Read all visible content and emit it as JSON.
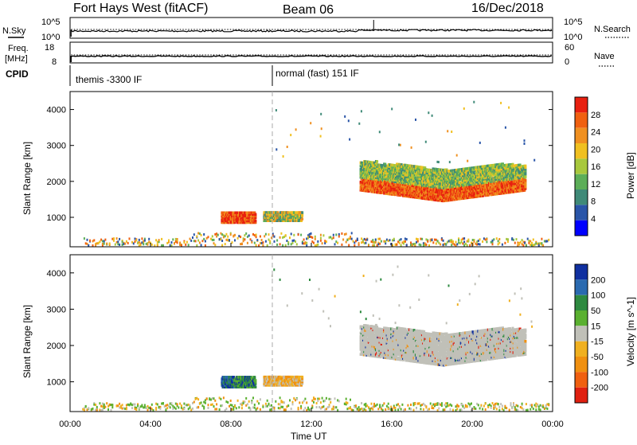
{
  "header": {
    "station": "Fort Hays West (fitACF)",
    "beam": "Beam 06",
    "date": "16/Dec/2018"
  },
  "nsky_panel": {
    "left_label": "N.Sky",
    "right_label": "N.Search",
    "left_ticks": [
      "10^5",
      "10^0"
    ],
    "right_ticks": [
      "10^5",
      "10^0"
    ]
  },
  "freq_panel": {
    "left_label_1": "Freq.",
    "left_label_2": "[MHz]",
    "right_label": "Nave",
    "left_ticks": [
      "18",
      "8"
    ],
    "right_ticks": [
      "60",
      "0"
    ]
  },
  "cpid_panel": {
    "label": "CPID",
    "segments": [
      {
        "text": "themis -3300 IF",
        "start_hour": 0.0
      },
      {
        "text": "normal (fast) 151 IF",
        "start_hour": 10.0
      }
    ]
  },
  "colors": {
    "power_scale": [
      "#0000ff",
      "#2a55a8",
      "#3f8a78",
      "#5cae58",
      "#a8c83c",
      "#f0c020",
      "#f09020",
      "#f06010",
      "#e82010"
    ],
    "velocity_scale": [
      "#1030a0",
      "#2a6ab0",
      "#2e8a40",
      "#5ab030",
      "#c0c0b8",
      "#f0b020",
      "#f09010",
      "#f06010",
      "#e02010"
    ]
  },
  "chart_data": [
    {
      "type": "heatmap",
      "name": "power",
      "x": {
        "label": "",
        "range": [
          0,
          24
        ],
        "ticks": [
          0,
          4,
          8,
          12,
          16,
          20,
          24
        ]
      },
      "y": {
        "label": "Slant Range [km]",
        "range": [
          180,
          4500
        ],
        "ticks": [
          "1000",
          "2000",
          "3000",
          "4000"
        ]
      },
      "colorbar": {
        "label": "Power [dB]",
        "ticks": [
          "4",
          "8",
          "12",
          "16",
          "20",
          "24",
          "28"
        ],
        "range": [
          0,
          30
        ]
      },
      "features": [
        {
          "hours": [
            7.5,
            9.2
          ],
          "range_km": [
            850,
            1150
          ],
          "value_db": 28
        },
        {
          "hours": [
            9.6,
            11.5
          ],
          "range_km": [
            900,
            1150
          ],
          "value_db": 22
        },
        {
          "hours": [
            14.4,
            22.6
          ],
          "range_km": [
            1300,
            2500
          ],
          "value_db": 24
        }
      ]
    },
    {
      "type": "heatmap",
      "name": "velocity",
      "x": {
        "label": "Time UT",
        "range": [
          0,
          24
        ],
        "ticks": [
          "00:00",
          "04:00",
          "08:00",
          "12:00",
          "16:00",
          "20:00",
          "00:00"
        ]
      },
      "y": {
        "label": "Slant Range [km]",
        "range": [
          180,
          4500
        ],
        "ticks": [
          "1000",
          "2000",
          "3000",
          "4000"
        ]
      },
      "colorbar": {
        "label": "Velocity [m s^-1]",
        "ticks": [
          "200",
          "100",
          "50",
          "15",
          "-15",
          "-50",
          "-100",
          "-200"
        ],
        "range": [
          -250,
          250
        ]
      },
      "features": [
        {
          "hours": [
            7.5,
            9.2
          ],
          "range_km": [
            850,
            1150
          ],
          "value_ms": 150
        },
        {
          "hours": [
            9.6,
            11.5
          ],
          "range_km": [
            900,
            1150
          ],
          "value_ms": -40
        },
        {
          "hours": [
            14.4,
            22.6
          ],
          "range_km": [
            1300,
            2500
          ],
          "value_ms": 0
        }
      ]
    }
  ]
}
